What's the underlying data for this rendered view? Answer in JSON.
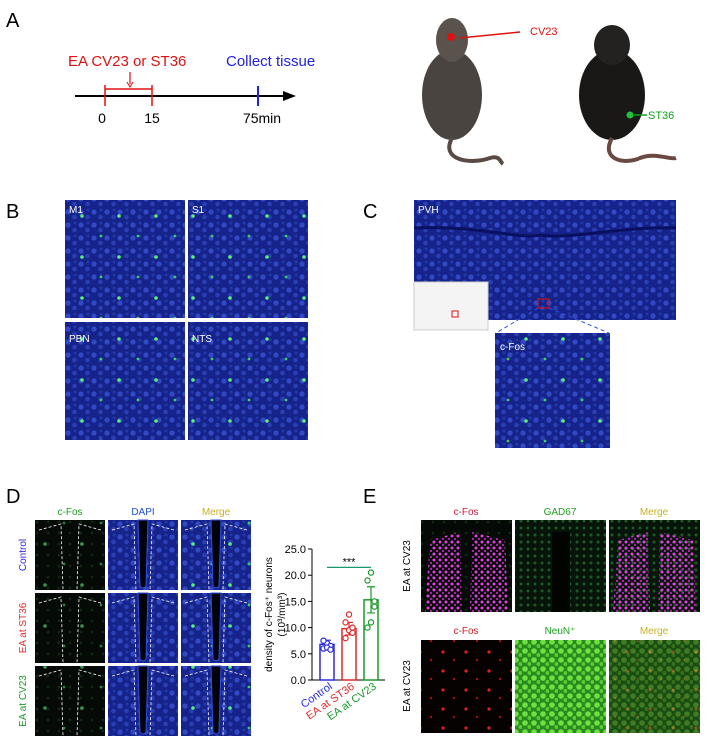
{
  "panel_labels": [
    "A",
    "B",
    "C",
    "D",
    "E"
  ],
  "panel_a": {
    "protocol": "EA CV23 or ST36",
    "collect": "Collect tissue",
    "time_labels": [
      "0",
      "15",
      "75min"
    ],
    "points": [
      "CV23",
      "ST36"
    ]
  },
  "panel_b": {
    "regions": [
      "M1",
      "S1",
      "PBN",
      "NTS"
    ]
  },
  "panel_c": {
    "region": "PVH",
    "zoom_label": "c-Fos"
  },
  "panel_d": {
    "stains": [
      "c-Fos",
      "DAPI",
      "Merge"
    ],
    "groups": [
      "Control",
      "EA at ST36",
      "EA at CV23"
    ],
    "chart": {
      "type": "bar",
      "y_label": [
        "density of c-Fos⁺ neurons",
        "(10³/mm³)"
      ],
      "categories": [
        "Control",
        "EA at ST36",
        "EA at CV23"
      ],
      "colors": [
        "#2a2ae0",
        "#e02a2a",
        "#1a9a2a"
      ],
      "values": [
        6.8,
        9.8,
        15.3
      ],
      "errors": [
        0.8,
        1.2,
        2.5
      ],
      "points": [
        [
          6.0,
          7.0,
          6.5,
          7.5,
          6.2,
          5.8
        ],
        [
          8.0,
          9.5,
          10.0,
          11.0,
          12.5,
          9.0
        ],
        [
          10.0,
          11.0,
          14.0,
          19.0,
          20.5,
          15.0
        ]
      ],
      "ylim": [
        0,
        25
      ],
      "yticks": [
        {
          "value": 0,
          "label": "0.0"
        },
        {
          "value": 5,
          "label": "5.0"
        },
        {
          "value": 10,
          "label": "10.0"
        },
        {
          "value": 15,
          "label": "15.0"
        },
        {
          "value": 20,
          "label": "20.0"
        },
        {
          "value": 25,
          "label": "25.0"
        }
      ],
      "significance": "***"
    }
  },
  "panel_e": {
    "row_labels": [
      "EA at CV23",
      "EA at CV23"
    ],
    "stains_top": [
      "c-Fos",
      "GAD67",
      "Merge"
    ],
    "stains_bottom": [
      "c-Fos",
      "NeuN⁺",
      "Merge"
    ]
  }
}
